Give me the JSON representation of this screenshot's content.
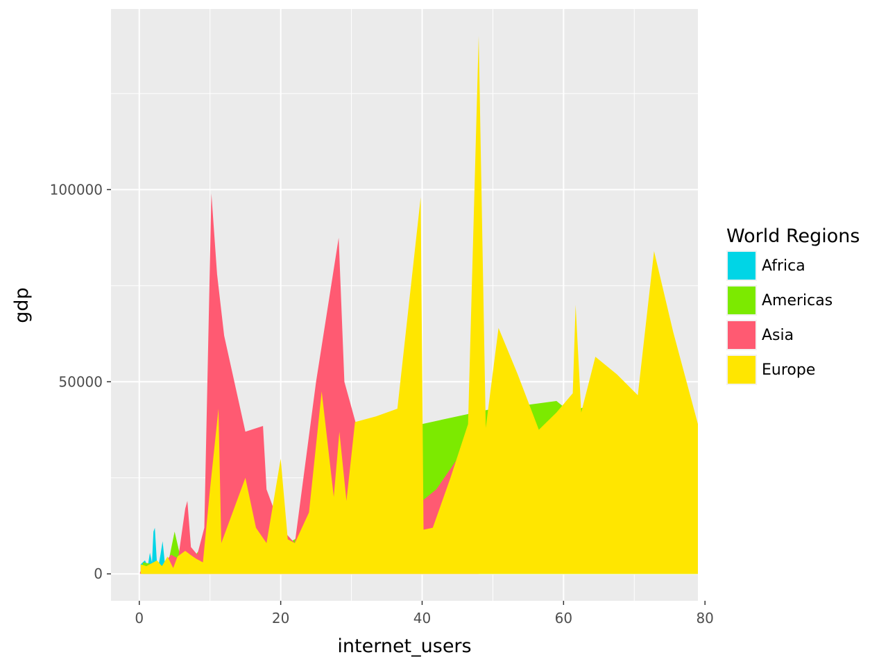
{
  "chart_data": {
    "type": "area",
    "stacked": false,
    "xlabel": "internet_users",
    "ylabel": "gdp",
    "xlim": [
      -4,
      79
    ],
    "ylim": [
      -7000,
      147000
    ],
    "x_ticks": [
      0,
      20,
      40,
      60,
      80
    ],
    "x_tick_labels": [
      "0",
      "20",
      "40",
      "60",
      "80"
    ],
    "y_ticks": [
      0,
      50000,
      100000
    ],
    "y_tick_labels": [
      "0",
      "50000",
      "100000"
    ],
    "grid": true,
    "legend": {
      "title": "World Regions",
      "position": "right"
    },
    "series": [
      {
        "name": "Africa",
        "color": "#00d5e6",
        "x": [
          0.2,
          0.8,
          1.2,
          1.5,
          1.8,
          2.0,
          2.2,
          2.5,
          2.8,
          3.0,
          3.3,
          3.6,
          4.0,
          4.4,
          5.0,
          6.0,
          7.0
        ],
        "y": [
          2500,
          3500,
          2000,
          5500,
          3000,
          11000,
          12000,
          2500,
          3000,
          5000,
          8500,
          3000,
          2500,
          2000,
          1500,
          2000,
          1000
        ]
      },
      {
        "name": "Americas",
        "color": "#7cea00",
        "x": [
          0.5,
          2.0,
          4.0,
          5.0,
          6.0,
          8.0,
          10.0,
          11.0,
          11.7,
          13.0,
          14.5,
          16.0,
          17.5,
          19.0,
          20.0,
          22.0,
          25.0,
          27.0,
          30.0,
          35.0,
          40.0,
          45.0,
          50.0,
          55.0,
          59.0,
          61.0,
          65.0,
          70.0,
          75.0,
          79.0
        ],
        "y": [
          3000,
          2500,
          2000,
          11000,
          3000,
          5000,
          10000,
          30000,
          7000,
          15000,
          25000,
          15000,
          10000,
          8000,
          7000,
          9000,
          16000,
          25000,
          30000,
          36000,
          39000,
          41000,
          43000,
          44000,
          45000,
          42000,
          45000,
          44000,
          40000,
          38000
        ]
      },
      {
        "name": "Asia",
        "color": "#ff5a72",
        "x": [
          0.1,
          1.0,
          2.0,
          3.0,
          4.5,
          5.5,
          6.5,
          6.8,
          7.3,
          8.2,
          9.2,
          10.2,
          11.0,
          12.0,
          15.0,
          17.5,
          18.0,
          20.0,
          22.0,
          25.0,
          28.2,
          29.0,
          30.5,
          32.0,
          35.0,
          38.0,
          40.0,
          42.0,
          45.0,
          48.0
        ],
        "y": [
          500,
          2000,
          3000,
          1500,
          5000,
          4000,
          17000,
          19000,
          7000,
          5000,
          12000,
          99000,
          78000,
          62000,
          37000,
          38500,
          22000,
          12000,
          8000,
          50000,
          87500,
          50000,
          40000,
          30000,
          25000,
          22000,
          19000,
          22000,
          30000,
          40000
        ]
      },
      {
        "name": "Europe",
        "color": "#ffe600",
        "x": [
          0.2,
          1.0,
          2.5,
          3.2,
          4.0,
          4.8,
          5.4,
          6.5,
          7.2,
          8.0,
          9.0,
          10.0,
          11.2,
          11.6,
          13.0,
          15.0,
          16.5,
          18.0,
          20.0,
          21.0,
          22.0,
          24.0,
          25.8,
          27.5,
          28.3,
          29.3,
          30.5,
          33.5,
          36.5,
          39.8,
          40.2,
          41.5,
          44.0,
          46.5,
          48.0,
          49.0,
          50.8,
          53.5,
          56.5,
          59.0,
          61.3,
          61.7,
          62.5,
          64.5,
          67.5,
          70.5,
          72.8,
          75.5,
          79.0
        ],
        "y": [
          2500,
          2000,
          3500,
          2000,
          4500,
          1500,
          4500,
          6000,
          5000,
          4000,
          3000,
          22000,
          43000,
          8000,
          15000,
          25000,
          12000,
          8000,
          30000,
          9000,
          8000,
          16000,
          47500,
          20000,
          37000,
          19000,
          39500,
          41000,
          43000,
          98000,
          11500,
          12000,
          25000,
          39000,
          140000,
          38000,
          64000,
          52000,
          37500,
          42000,
          47000,
          70000,
          42000,
          56500,
          52000,
          46500,
          84000,
          63000,
          39000
        ]
      }
    ]
  }
}
